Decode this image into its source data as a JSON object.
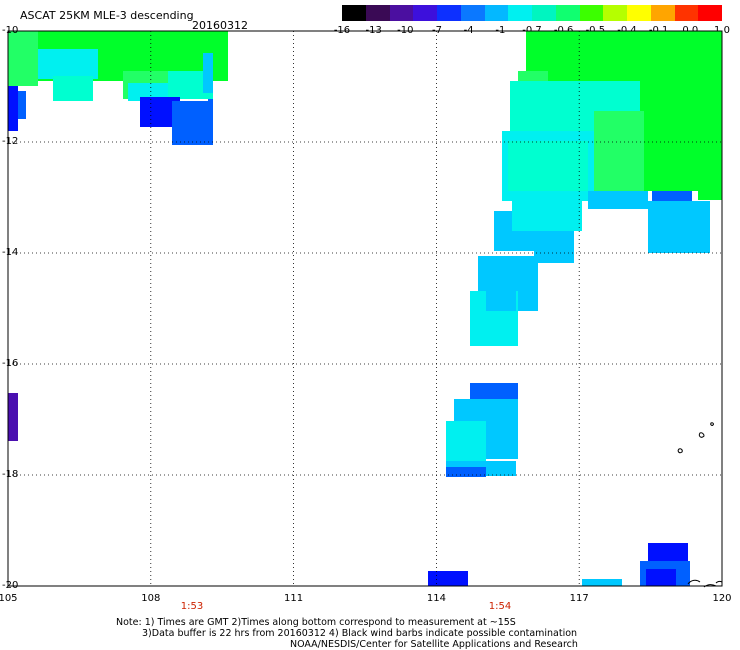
{
  "header": {
    "title": "ASCAT 25KM MLE-3 descending",
    "date": "20160312"
  },
  "colorbar": {
    "ticks": [
      "-16",
      "-13",
      "-10",
      "-7",
      "-4",
      "-1",
      "-0.7",
      "-0.6",
      "-0.5",
      "-0.4",
      "-0.1",
      "0.0",
      "1.0"
    ],
    "colors": [
      "#000000",
      "#3a0a55",
      "#4b0fa0",
      "#3d10dc",
      "#0d30ff",
      "#0b78ff",
      "#04b8ff",
      "#00f0f0",
      "#00f5c0",
      "#10ff70",
      "#3cff00",
      "#b5ff00",
      "#ffff00",
      "#ffa500",
      "#ff3300",
      "#ff0000"
    ]
  },
  "axes": {
    "y_labels": [
      "-10",
      "-12",
      "-14",
      "-16",
      "-18",
      "-20"
    ],
    "x_labels": [
      "105",
      "108",
      "111",
      "114",
      "117",
      "120"
    ]
  },
  "times": [
    "1:53",
    "1:54"
  ],
  "notes": {
    "line1": "Note: 1) Times are GMT 2)Times along bottom correspond to measurement at ~15S",
    "line2": "3)Data buffer is 22 hrs from 20160312 4) Black wind barbs indicate possible contamination",
    "line3": "NOAA/NESDIS/Center for Satellite Applications and Research"
  },
  "swath_colors": {
    "green": "#00ff2a",
    "lightgreen": "#22ff66",
    "cyan": "#00ffd0",
    "aqua": "#00f0f0",
    "skyblue": "#00c8ff",
    "blue": "#0060ff",
    "deepblue": "#0010ff",
    "violet": "#4a0fb0"
  }
}
